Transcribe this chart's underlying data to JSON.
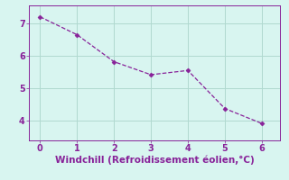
{
  "x": [
    0,
    1,
    2,
    3,
    4,
    5,
    6
  ],
  "y": [
    7.2,
    6.65,
    5.82,
    5.42,
    5.55,
    4.38,
    3.92
  ],
  "line_color": "#882299",
  "marker": "D",
  "marker_size": 2.5,
  "xlabel": "Windchill (Refroidissement éolien,°C)",
  "xlim": [
    -0.3,
    6.5
  ],
  "ylim": [
    3.4,
    7.55
  ],
  "yticks": [
    4,
    5,
    6,
    7
  ],
  "xticks": [
    0,
    1,
    2,
    3,
    4,
    5,
    6
  ],
  "bg_color": "#d8f5f0",
  "grid_color": "#b0d9d0",
  "axis_color": "#882299",
  "xlabel_fontsize": 7.5,
  "tick_fontsize": 7
}
